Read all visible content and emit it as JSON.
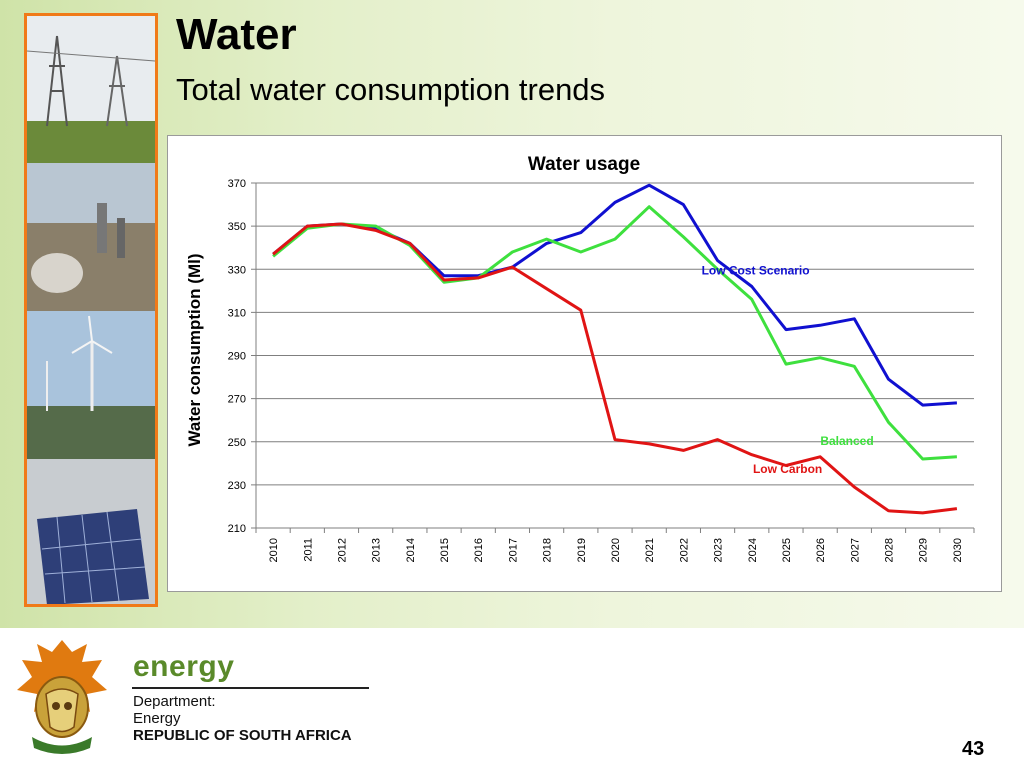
{
  "slide": {
    "title": "Water",
    "subtitle": "Total water consumption trends",
    "page_number": "43"
  },
  "footer": {
    "brand": "energy",
    "dept_line1": "Department:",
    "dept_line2": "Energy",
    "dept_line3": "REPUBLIC OF SOUTH AFRICA"
  },
  "colors": {
    "accent_border": "#f07a18",
    "brand_green": "#5a8a2a"
  },
  "chart_data": {
    "type": "line",
    "title": "Water usage",
    "ylabel": "Water consumption   (Ml)",
    "xlabel": "",
    "ylim": [
      210,
      370
    ],
    "yticks": [
      210,
      230,
      250,
      270,
      290,
      310,
      330,
      350,
      370
    ],
    "grid": true,
    "x": [
      "2010",
      "2011",
      "2012",
      "2013",
      "2014",
      "2015",
      "2016",
      "2017",
      "2018",
      "2019",
      "2020",
      "2021",
      "2022",
      "2023",
      "2024",
      "2025",
      "2026",
      "2027",
      "2028",
      "2029",
      "2030"
    ],
    "series": [
      {
        "name": "Low Cost Scenario",
        "color": "#1010d0",
        "values": [
          337,
          350,
          351,
          349,
          342,
          327,
          327,
          331,
          342,
          347,
          361,
          369,
          360,
          334,
          322,
          302,
          304,
          307,
          279,
          267,
          268
        ]
      },
      {
        "name": "Balanced",
        "color": "#3ee03e",
        "values": [
          336,
          349,
          351,
          350,
          341,
          324,
          326,
          338,
          344,
          338,
          344,
          359,
          345,
          330,
          316,
          286,
          289,
          285,
          259,
          242,
          243
        ]
      },
      {
        "name": "Low Carbon",
        "color": "#e01414",
        "values": [
          337,
          350,
          351,
          348,
          342,
          325,
          326,
          331,
          321,
          311,
          251,
          249,
          246,
          251,
          244,
          239,
          243,
          229,
          218,
          217,
          219
        ]
      }
    ]
  }
}
